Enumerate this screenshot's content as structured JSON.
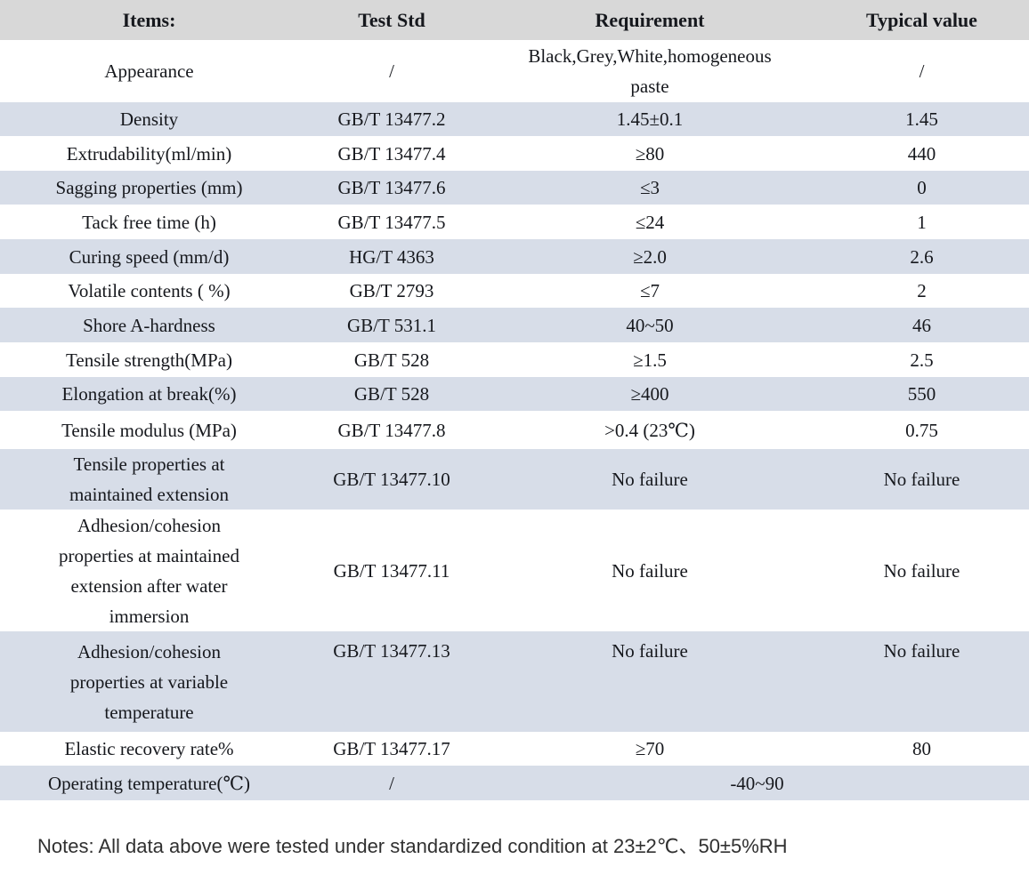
{
  "table": {
    "headers": [
      "Items:",
      "Test Std",
      "Requirement",
      "Typical value"
    ],
    "rows": [
      {
        "item": "Appearance",
        "std": "/",
        "req": "Black,Grey,White,homogeneous\npaste",
        "typ": "/",
        "shaded": false
      },
      {
        "item": "Density",
        "std": "GB/T 13477.2",
        "req": "1.45±0.1",
        "typ": "1.45",
        "shaded": true
      },
      {
        "item": "Extrudability(ml/min)",
        "std": "GB/T 13477.4",
        "req": "≥80",
        "typ": "440",
        "shaded": false
      },
      {
        "item": "Sagging properties (mm)",
        "std": "GB/T 13477.6",
        "req": "≤3",
        "typ": "0",
        "shaded": true
      },
      {
        "item": "Tack free time (h)",
        "std": "GB/T 13477.5",
        "req": "≤24",
        "typ": "1",
        "shaded": false
      },
      {
        "item": "Curing speed (mm/d)",
        "std": "HG/T 4363",
        "req": "≥2.0",
        "typ": "2.6",
        "shaded": true
      },
      {
        "item": "Volatile contents ( %)",
        "std": "GB/T 2793",
        "req": "≤7",
        "typ": "2",
        "shaded": false
      },
      {
        "item": "Shore A-hardness",
        "std": "GB/T 531.1",
        "req": "40~50",
        "typ": "46",
        "shaded": true
      },
      {
        "item": "Tensile strength(MPa)",
        "std": "GB/T 528",
        "req": "≥1.5",
        "typ": "2.5",
        "shaded": false
      },
      {
        "item": "Elongation at break(%)",
        "std": "GB/T 528",
        "req": "≥400",
        "typ": "550",
        "shaded": true
      },
      {
        "item": "Tensile modulus (MPa)",
        "std": "GB/T 13477.8",
        "req": ">0.4 (23℃)",
        "typ": "0.75",
        "shaded": false
      },
      {
        "item": "Tensile properties at\nmaintained extension",
        "std": "GB/T 13477.10",
        "req": "No failure",
        "typ": "No failure",
        "shaded": true
      },
      {
        "item": "Adhesion/cohesion\nproperties at maintained\nextension after water\nimmersion",
        "std": "GB/T 13477.11",
        "req": "No failure",
        "typ": "No failure",
        "shaded": false
      },
      {
        "item": "Adhesion/cohesion\nproperties at variable\ntemperature",
        "std": "GB/T 13477.13",
        "req": "No failure",
        "typ": "No failure",
        "shaded": true,
        "top_align": true
      },
      {
        "item": "Elastic recovery rate%",
        "std": "GB/T 13477.17",
        "req": "≥70",
        "typ": "80",
        "shaded": false
      },
      {
        "item": "Operating temperature(℃)",
        "std": "/",
        "req": "-40~90",
        "typ": "",
        "shaded": true,
        "merged": true
      }
    ]
  },
  "notes": {
    "text": "Notes: All data above were tested under standardized condition at 23±2℃、50±5%RH"
  }
}
